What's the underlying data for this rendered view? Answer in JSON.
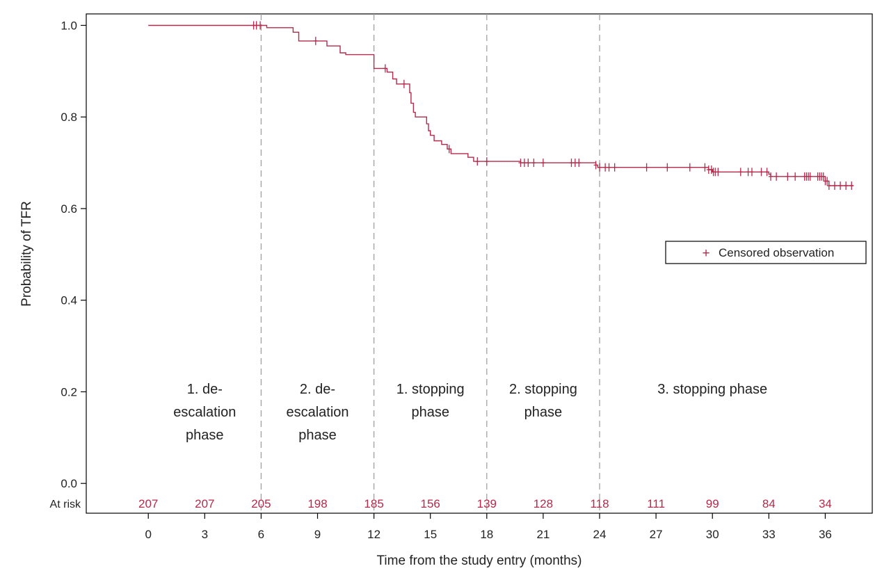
{
  "chart_data": {
    "type": "line",
    "title": "",
    "xlabel": "Time from the study entry (months)",
    "ylabel": "Probability of TFR",
    "xlim": [
      -3.3,
      38.5
    ],
    "ylim": [
      -0.065,
      1.025
    ],
    "x_ticks": [
      0,
      3,
      6,
      9,
      12,
      15,
      18,
      21,
      24,
      27,
      30,
      33,
      36
    ],
    "y_ticks": [
      0.0,
      0.2,
      0.4,
      0.6,
      0.8,
      1.0
    ],
    "y_tick_labels": [
      "0.0",
      "0.2",
      "0.4",
      "0.6",
      "0.8",
      "1.0"
    ],
    "grid": false,
    "series": [
      {
        "type": "step",
        "color": "#b5294a",
        "points": [
          [
            0,
            1.0
          ],
          [
            6.3,
            1.0
          ],
          [
            6.3,
            0.995
          ],
          [
            7.7,
            0.995
          ],
          [
            7.7,
            0.985
          ],
          [
            8.0,
            0.985
          ],
          [
            8.0,
            0.966
          ],
          [
            9.5,
            0.966
          ],
          [
            9.5,
            0.955
          ],
          [
            10.2,
            0.955
          ],
          [
            10.2,
            0.94
          ],
          [
            10.5,
            0.94
          ],
          [
            10.5,
            0.936
          ],
          [
            12.0,
            0.936
          ],
          [
            12.0,
            0.906
          ],
          [
            12.7,
            0.906
          ],
          [
            12.7,
            0.898
          ],
          [
            13.0,
            0.898
          ],
          [
            13.0,
            0.883
          ],
          [
            13.2,
            0.883
          ],
          [
            13.2,
            0.872
          ],
          [
            13.9,
            0.872
          ],
          [
            13.9,
            0.853
          ],
          [
            13.97,
            0.853
          ],
          [
            13.97,
            0.83
          ],
          [
            14.1,
            0.83
          ],
          [
            14.1,
            0.81
          ],
          [
            14.2,
            0.81
          ],
          [
            14.2,
            0.8
          ],
          [
            14.8,
            0.8
          ],
          [
            14.8,
            0.785
          ],
          [
            14.9,
            0.785
          ],
          [
            14.9,
            0.77
          ],
          [
            15.0,
            0.77
          ],
          [
            15.0,
            0.76
          ],
          [
            15.2,
            0.76
          ],
          [
            15.2,
            0.748
          ],
          [
            15.6,
            0.748
          ],
          [
            15.6,
            0.74
          ],
          [
            15.9,
            0.74
          ],
          [
            15.9,
            0.73
          ],
          [
            16.1,
            0.73
          ],
          [
            16.1,
            0.72
          ],
          [
            17.0,
            0.72
          ],
          [
            17.0,
            0.712
          ],
          [
            17.3,
            0.712
          ],
          [
            17.3,
            0.703
          ],
          [
            19.8,
            0.703
          ],
          [
            19.8,
            0.7
          ],
          [
            23.8,
            0.7
          ],
          [
            23.8,
            0.695
          ],
          [
            23.9,
            0.695
          ],
          [
            23.9,
            0.69
          ],
          [
            29.8,
            0.69
          ],
          [
            29.8,
            0.685
          ],
          [
            30.0,
            0.685
          ],
          [
            30.0,
            0.68
          ],
          [
            33.0,
            0.68
          ],
          [
            33.0,
            0.675
          ],
          [
            33.1,
            0.675
          ],
          [
            33.1,
            0.67
          ],
          [
            36.0,
            0.67
          ],
          [
            36.0,
            0.66
          ],
          [
            36.2,
            0.66
          ],
          [
            36.2,
            0.65
          ],
          [
            37.5,
            0.65
          ]
        ],
        "censored_x": [
          5.6,
          5.75,
          5.95,
          8.9,
          12.6,
          13.6,
          16.0,
          17.5,
          18.0,
          19.8,
          20.0,
          20.2,
          20.5,
          21.0,
          22.5,
          22.7,
          22.9,
          23.8,
          24.0,
          24.3,
          24.5,
          24.8,
          26.5,
          27.6,
          28.8,
          29.6,
          29.8,
          29.95,
          30.05,
          30.15,
          30.3,
          31.5,
          31.9,
          32.1,
          32.6,
          32.9,
          33.1,
          33.4,
          34.0,
          34.4,
          34.9,
          35.0,
          35.1,
          35.2,
          35.6,
          35.7,
          35.8,
          35.9,
          36.0,
          36.1,
          36.2,
          36.5,
          36.8,
          37.1,
          37.4
        ]
      }
    ],
    "reference_lines_x": [
      6,
      12,
      18,
      24
    ],
    "phase_labels": [
      {
        "lines": [
          "1. de-",
          "escalation",
          "phase"
        ],
        "x": 3,
        "color": "#222222"
      },
      {
        "lines": [
          "2. de-",
          "escalation",
          "phase"
        ],
        "x": 9,
        "color": "#222222"
      },
      {
        "lines": [
          "1.  stopping",
          "phase"
        ],
        "x": 15,
        "color": "#222222"
      },
      {
        "lines": [
          "2.  stopping",
          "phase"
        ],
        "x": 21,
        "color": "#222222"
      },
      {
        "lines": [
          "3.  stopping phase"
        ],
        "x": 30,
        "color": "#222222"
      }
    ],
    "at_risk": {
      "label": "At risk",
      "x": [
        0,
        3,
        6,
        9,
        12,
        15,
        18,
        21,
        24,
        27,
        30,
        33,
        36
      ],
      "values": [
        "207",
        "207",
        "205",
        "198",
        "185",
        "156",
        "139",
        "128",
        "118",
        "111",
        "99",
        "84",
        "34"
      ],
      "color": "#b5294a"
    },
    "legend": {
      "position": "right",
      "symbol": "+",
      "label": "Censored observation"
    }
  }
}
